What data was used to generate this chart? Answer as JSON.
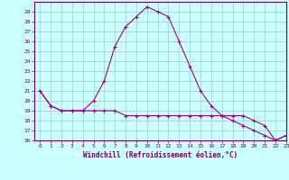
{
  "hours": [
    0,
    1,
    2,
    3,
    4,
    5,
    6,
    7,
    8,
    9,
    10,
    11,
    12,
    13,
    14,
    15,
    16,
    17,
    18,
    19,
    20,
    21,
    22,
    23
  ],
  "temp": [
    21,
    19.5,
    19,
    19,
    19,
    20,
    22,
    25.5,
    27.5,
    28.5,
    29.5,
    29,
    28.5,
    26,
    23.5,
    21,
    19.5,
    18.5,
    18.5,
    18.5,
    18,
    17.5,
    16,
    16.5
  ],
  "windchill": [
    21,
    19.5,
    19,
    19,
    19,
    19,
    19,
    19,
    18.5,
    18.5,
    18.5,
    18.5,
    18.5,
    18.5,
    18.5,
    18.5,
    18.5,
    18.5,
    18,
    17.5,
    17,
    16.5,
    16,
    16.5
  ],
  "line_color": "#990099",
  "bg_color": "#ccffff",
  "grid_color": "#99cccc",
  "spine_color": "#660066",
  "tick_color": "#660066",
  "xlabel": "Windchill (Refroidissement éolien,°C)",
  "ylim": [
    16,
    30
  ],
  "xlim": [
    -0.5,
    23
  ],
  "yticks": [
    16,
    17,
    18,
    19,
    20,
    21,
    22,
    23,
    24,
    25,
    26,
    27,
    28,
    29
  ],
  "xticks": [
    0,
    1,
    2,
    3,
    4,
    5,
    6,
    7,
    8,
    9,
    10,
    11,
    12,
    13,
    14,
    15,
    16,
    17,
    18,
    19,
    20,
    21,
    22,
    23
  ]
}
